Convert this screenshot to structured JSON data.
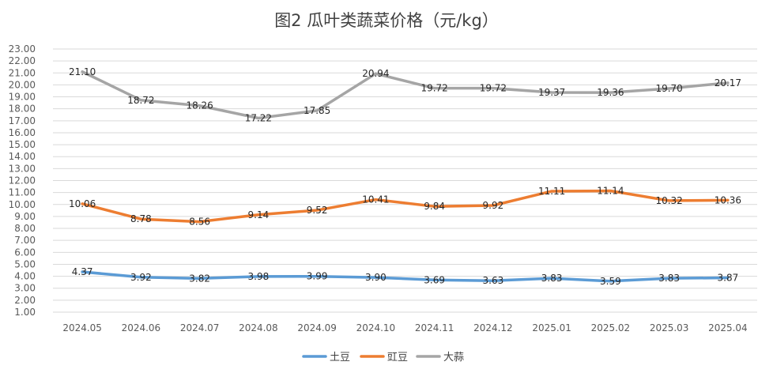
{
  "chart_data": {
    "type": "line",
    "title": "图2  瓜叶类蔬菜价格（元/kg）",
    "xlabel": "",
    "ylabel": "",
    "categories": [
      "2024.05",
      "2024.06",
      "2024.07",
      "2024.08",
      "2024.09",
      "2024.10",
      "2024.11",
      "2024.12",
      "2025.01",
      "2025.02",
      "2025.03",
      "2025.04"
    ],
    "ylim": [
      1.0,
      23.0
    ],
    "ytick_step": 1.0,
    "grid": true,
    "legend_position": "bottom",
    "series": [
      {
        "name": "土豆",
        "color": "#5B9BD5",
        "values": [
          4.37,
          3.92,
          3.82,
          3.98,
          3.99,
          3.9,
          3.69,
          3.63,
          3.83,
          3.59,
          3.83,
          3.87
        ]
      },
      {
        "name": "豇豆",
        "color": "#ED7D31",
        "values": [
          10.06,
          8.78,
          8.56,
          9.14,
          9.52,
          10.41,
          9.84,
          9.92,
          11.11,
          11.14,
          10.32,
          10.36
        ]
      },
      {
        "name": "大蒜",
        "color": "#A5A5A5",
        "values": [
          21.1,
          18.72,
          18.26,
          17.22,
          17.85,
          20.94,
          19.72,
          19.72,
          19.37,
          19.36,
          19.7,
          20.17
        ]
      }
    ]
  }
}
